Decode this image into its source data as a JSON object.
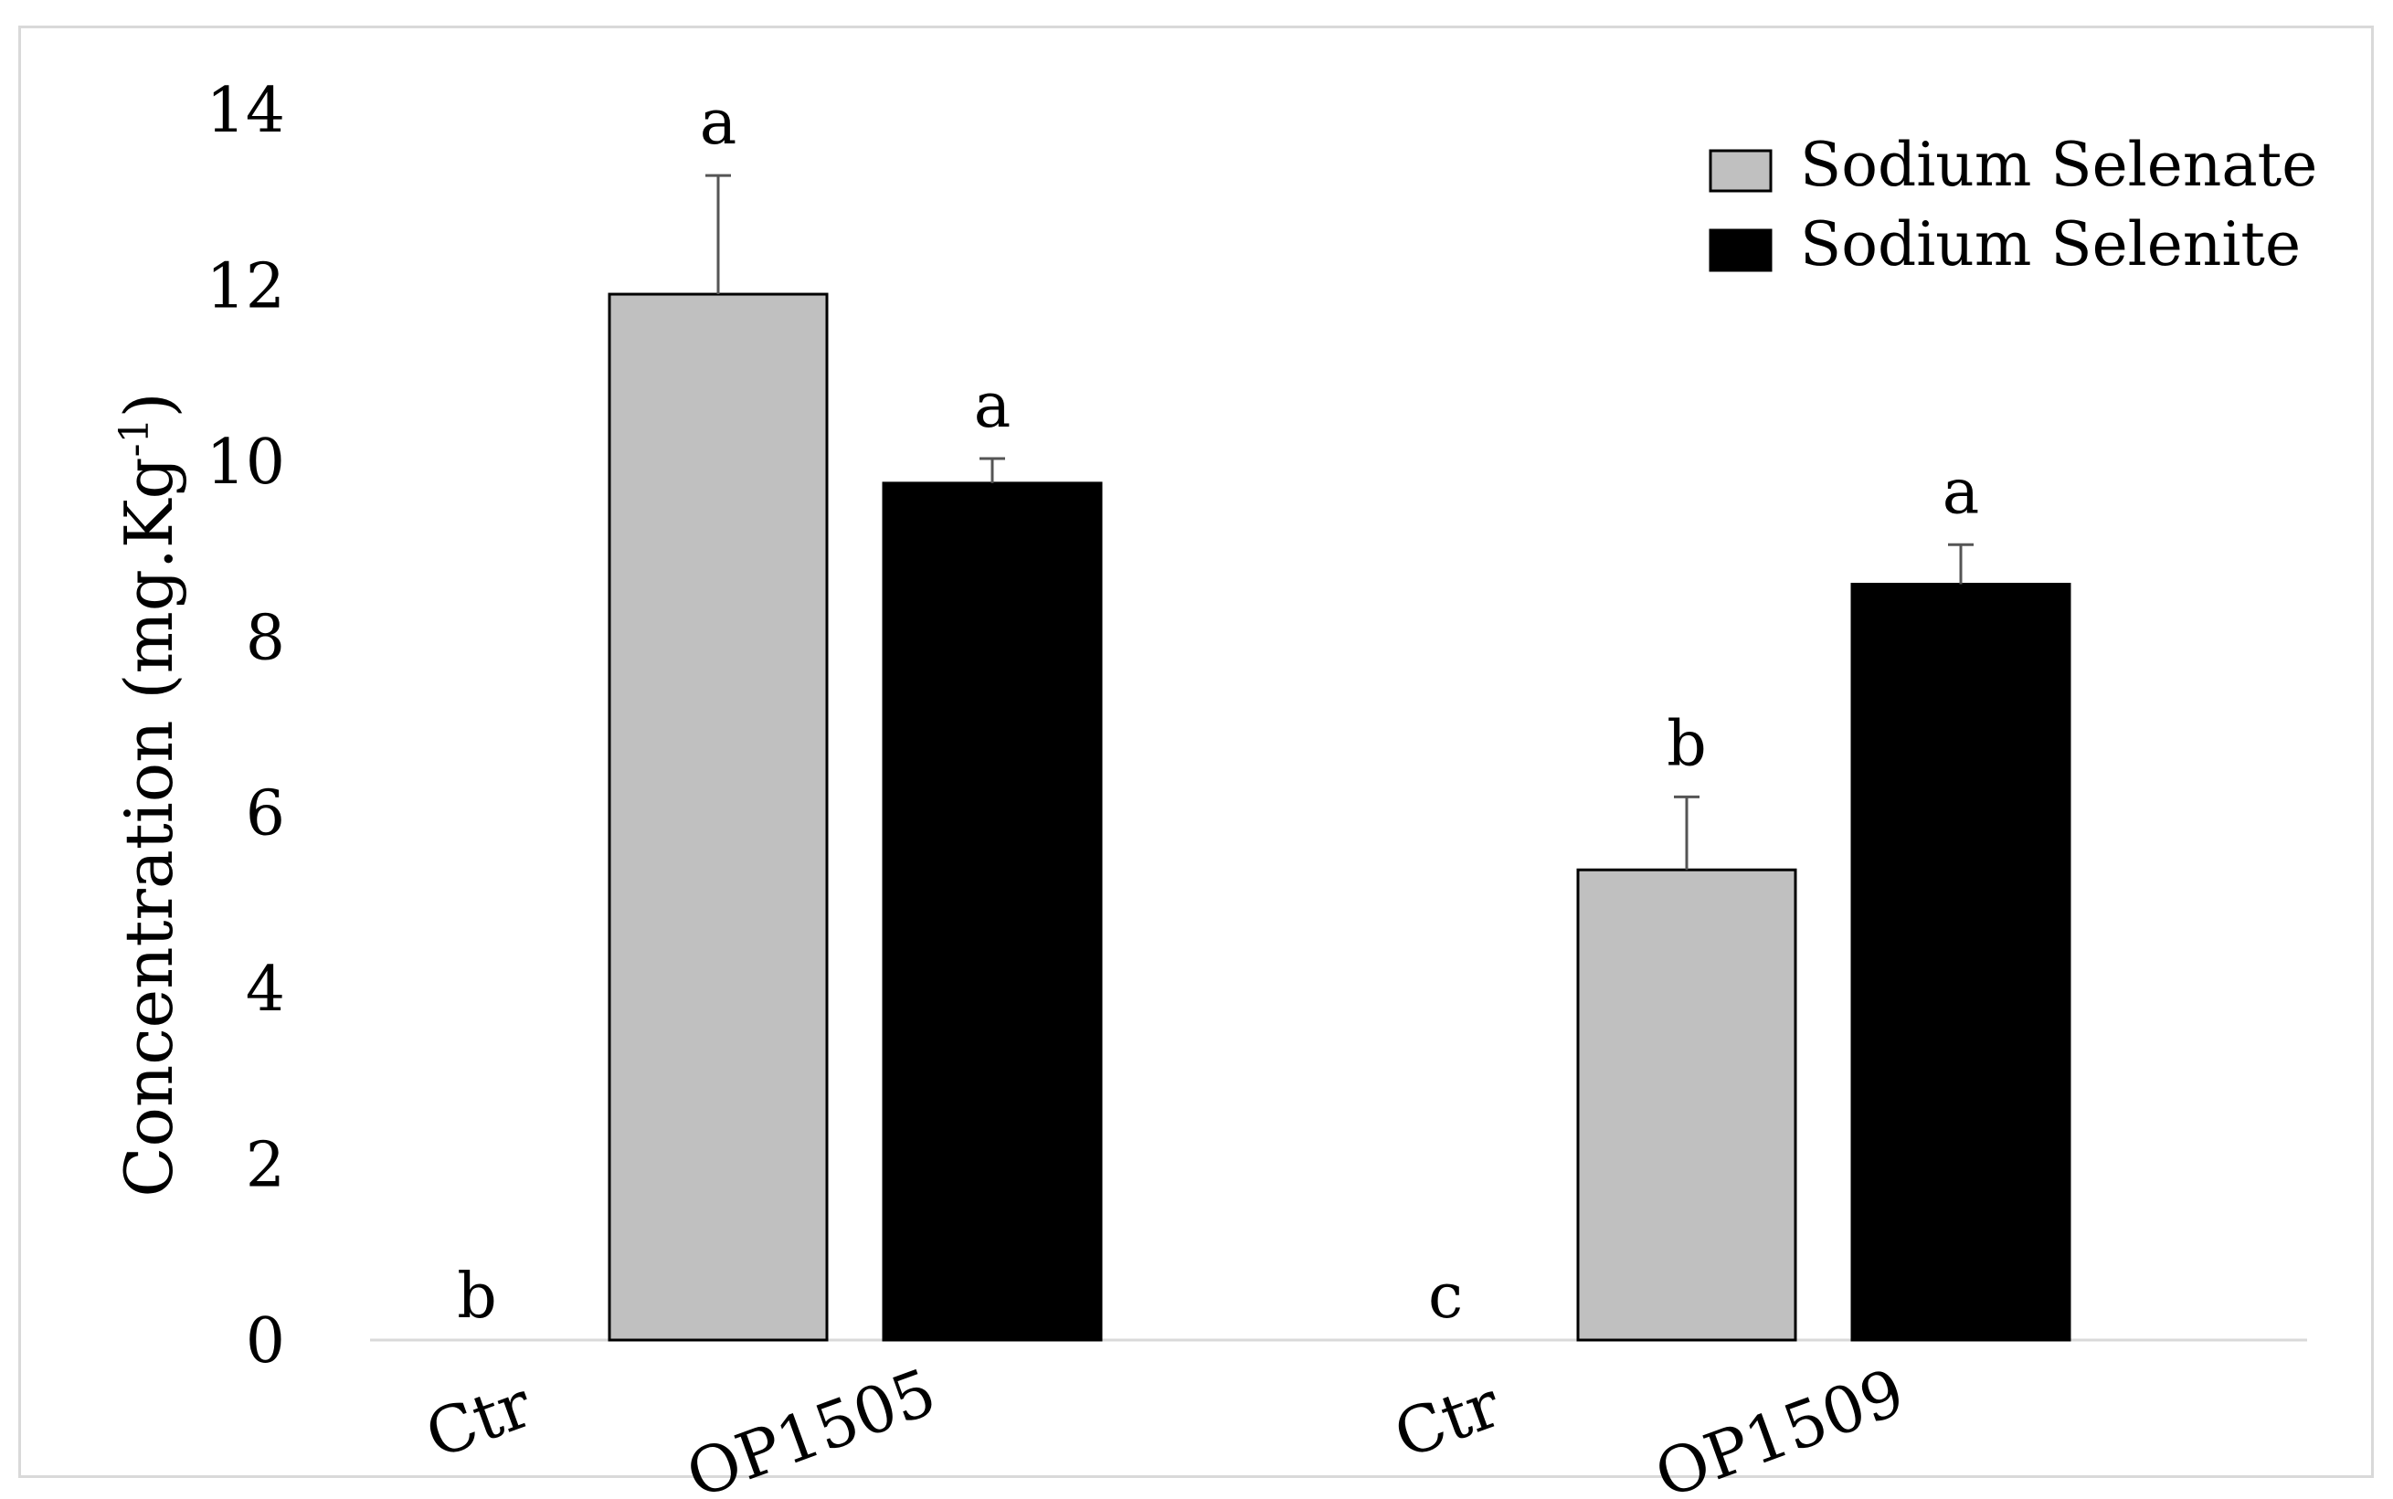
{
  "chart_data": {
    "type": "bar",
    "title": "",
    "ylabel": "Concentration (mg.Kg",
    "ylabel_superscript": "-1",
    "ylabel_close": ")",
    "xlabel": "",
    "ylim": [
      0,
      14
    ],
    "yticks": [
      0,
      2,
      4,
      6,
      8,
      10,
      12,
      14
    ],
    "groups": [
      {
        "name": "OP1505",
        "control": {
          "label": "Ctr",
          "value": 0,
          "significance": "b"
        },
        "bars": [
          {
            "series": "Sodium Selenate",
            "value": 11.9,
            "error": 1.35,
            "significance": "a"
          },
          {
            "series": "Sodium Selenite",
            "value": 9.75,
            "error": 0.28,
            "significance": "a"
          }
        ]
      },
      {
        "name": "OP1509",
        "control": {
          "label": "Ctr",
          "value": 0,
          "significance": "c"
        },
        "bars": [
          {
            "series": "Sodium Selenate",
            "value": 5.35,
            "error": 0.83,
            "significance": "b"
          },
          {
            "series": "Sodium Selenite",
            "value": 8.6,
            "error": 0.45,
            "significance": "a"
          }
        ]
      }
    ],
    "legend": {
      "position": "top-right",
      "entries": [
        {
          "label": "Sodium Selenate",
          "color": "#c0c0c0"
        },
        {
          "label": "Sodium Selenite",
          "color": "#000000"
        }
      ]
    },
    "colors": {
      "selenate": "#c0c0c0",
      "selenite": "#000000",
      "axis": "#d9d9d9",
      "error_bar": "#555555"
    }
  }
}
